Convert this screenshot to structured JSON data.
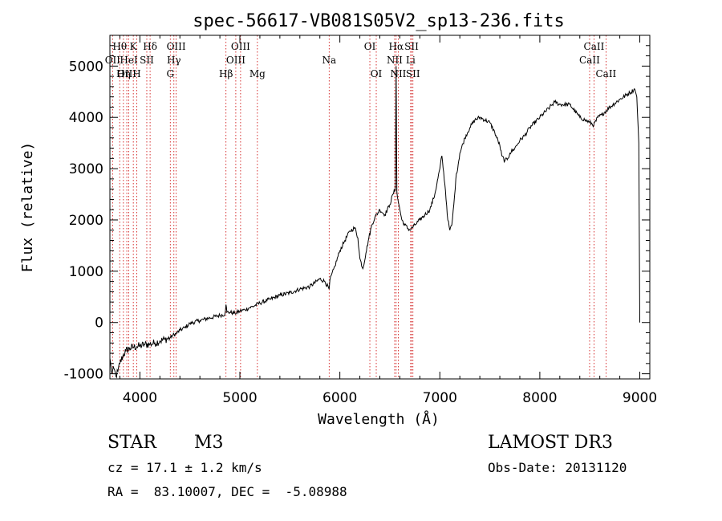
{
  "chart_data": {
    "type": "line",
    "title": "spec-56617-VB081S05V2_sp13-236.fits",
    "xlabel": "Wavelength (Å)",
    "ylabel": "Flux (relative)",
    "xlim": [
      3700,
      9100
    ],
    "ylim": [
      -1100,
      5600
    ],
    "xticks": [
      4000,
      5000,
      6000,
      7000,
      8000,
      9000
    ],
    "yticks": [
      -1000,
      0,
      1000,
      2000,
      3000,
      4000,
      5000
    ],
    "series": [
      {
        "name": "spectrum",
        "x": [
          3700,
          3720,
          3740,
          3760,
          3780,
          3800,
          3830,
          3860,
          3900,
          3940,
          3970,
          4000,
          4050,
          4100,
          4150,
          4200,
          4250,
          4300,
          4330,
          4360,
          4400,
          4450,
          4500,
          4600,
          4700,
          4800,
          4850,
          4861,
          4870,
          4900,
          4950,
          5000,
          5050,
          5100,
          5150,
          5200,
          5300,
          5400,
          5500,
          5600,
          5700,
          5800,
          5850,
          5893,
          5900,
          5950,
          6000,
          6050,
          6100,
          6150,
          6180,
          6200,
          6230,
          6260,
          6290,
          6320,
          6350,
          6400,
          6450,
          6500,
          6530,
          6555,
          6563,
          6570,
          6590,
          6620,
          6650,
          6700,
          6750,
          6800,
          6850,
          6900,
          6950,
          7000,
          7020,
          7050,
          7080,
          7100,
          7120,
          7140,
          7160,
          7200,
          7250,
          7300,
          7350,
          7400,
          7450,
          7500,
          7550,
          7600,
          7620,
          7650,
          7680,
          7700,
          7750,
          7800,
          7850,
          7900,
          8000,
          8100,
          8150,
          8200,
          8300,
          8400,
          8450,
          8500,
          8540,
          8580,
          8620,
          8700,
          8800,
          8900,
          8950,
          8970,
          8990,
          9000
        ],
        "y": [
          -700,
          -1000,
          -900,
          -1050,
          -950,
          -800,
          -650,
          -550,
          -500,
          -480,
          -470,
          -460,
          -430,
          -420,
          -400,
          -360,
          -330,
          -300,
          -250,
          -220,
          -150,
          -100,
          -20,
          40,
          90,
          140,
          160,
          350,
          200,
          200,
          180,
          220,
          250,
          290,
          330,
          380,
          450,
          530,
          580,
          650,
          700,
          850,
          800,
          650,
          820,
          1100,
          1400,
          1600,
          1780,
          1850,
          1650,
          1250,
          1050,
          1350,
          1650,
          1900,
          2050,
          2200,
          2100,
          2300,
          2500,
          2600,
          5000,
          2550,
          2300,
          2000,
          1900,
          1800,
          1900,
          2000,
          2100,
          2200,
          2500,
          3000,
          3250,
          2700,
          2000,
          1800,
          1900,
          2300,
          2800,
          3300,
          3600,
          3800,
          3950,
          4000,
          3950,
          3900,
          3700,
          3450,
          3250,
          3150,
          3200,
          3300,
          3400,
          3550,
          3650,
          3800,
          4000,
          4200,
          4300,
          4250,
          4250,
          4000,
          3950,
          3900,
          3850,
          4000,
          4050,
          4200,
          4350,
          4480,
          4550,
          4400,
          3500,
          0
        ]
      }
    ],
    "lines": [
      {
        "name": "Hθ",
        "wl": 3798,
        "row": 1
      },
      {
        "name": "OII",
        "wl": 3727,
        "row": 2
      },
      {
        "name": "OIII",
        "wl": 3869,
        "row": 3
      },
      {
        "name": "K",
        "wl": 3934,
        "row": 1
      },
      {
        "name": "HeI",
        "wl": 3889,
        "row": 2
      },
      {
        "name": "Hη",
        "wl": 3835,
        "row": 3
      },
      {
        "name": "SII",
        "wl": 4069,
        "row": 2
      },
      {
        "name": "H",
        "wl": 3969,
        "row": 3
      },
      {
        "name": "Hδ",
        "wl": 4102,
        "row": 1
      },
      {
        "name": "OIII",
        "wl": 4363,
        "row": 1
      },
      {
        "name": "Hγ",
        "wl": 4340,
        "row": 2
      },
      {
        "name": "G",
        "wl": 4304,
        "row": 3
      },
      {
        "name": "Hβ",
        "wl": 4861,
        "row": 3
      },
      {
        "name": "OIII",
        "wl": 5007,
        "row": 1
      },
      {
        "name": "OIII",
        "wl": 4959,
        "row": 2
      },
      {
        "name": "Mg",
        "wl": 5175,
        "row": 3
      },
      {
        "name": "Na",
        "wl": 5893,
        "row": 2
      },
      {
        "name": "OI",
        "wl": 6300,
        "row": 1
      },
      {
        "name": "OI",
        "wl": 6364,
        "row": 3
      },
      {
        "name": "Hα",
        "wl": 6563,
        "row": 1
      },
      {
        "name": "NII",
        "wl": 6548,
        "row": 2
      },
      {
        "name": "NII",
        "wl": 6584,
        "row": 3
      },
      {
        "name": "SII",
        "wl": 6717,
        "row": 1
      },
      {
        "name": "Li",
        "wl": 6708,
        "row": 2
      },
      {
        "name": "SII",
        "wl": 6731,
        "row": 3
      },
      {
        "name": "CaII",
        "wl": 8542,
        "row": 1
      },
      {
        "name": "CaII",
        "wl": 8498,
        "row": 2
      },
      {
        "name": "CaII",
        "wl": 8662,
        "row": 3
      }
    ]
  },
  "info": {
    "class": "STAR",
    "subclass": "M3",
    "survey": "LAMOST DR3",
    "cz": "cz = 17.1 ± 1.2 km/s",
    "obs_date": "Obs-Date: 20131120",
    "radec": "RA =  83.10007, DEC =  -5.08988"
  }
}
